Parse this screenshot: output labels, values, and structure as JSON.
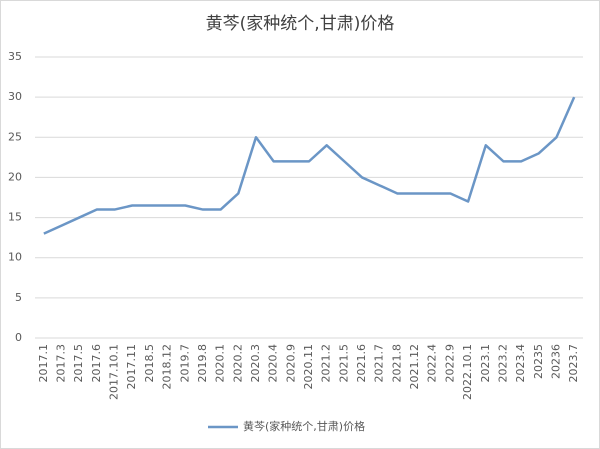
{
  "chart_data": {
    "type": "line",
    "title": "黄芩(家种统个,甘肃)价格",
    "categories": [
      "2017.1",
      "2017.3",
      "2017.5",
      "2017.6",
      "2017.10.1",
      "2017.11",
      "2018.5",
      "2018.12",
      "2019.7",
      "2019.8",
      "2020.1",
      "2020.2",
      "2020.3",
      "2020.4",
      "2020.9",
      "2020.11",
      "2021.2",
      "2021.5",
      "2021.6",
      "2021.7",
      "2021.8",
      "2021.12",
      "2022.4",
      "2022.9",
      "2022.10.1",
      "2023.1",
      "2023.2",
      "2023.4",
      "20235",
      "20236",
      "2023.7"
    ],
    "series": [
      {
        "name": "黄芩(家种统个,甘肃)价格",
        "color": "#6b96c6",
        "values": [
          13,
          14,
          15,
          16,
          16,
          16.5,
          16.5,
          16.5,
          16.5,
          16,
          16,
          18,
          25,
          22,
          22,
          22,
          24,
          22,
          20,
          19,
          18,
          18,
          18,
          18,
          17,
          24,
          22,
          22,
          23,
          25,
          30
        ]
      }
    ],
    "ylim": [
      0,
      35
    ],
    "yticks": [
      0,
      5,
      10,
      15,
      20,
      25,
      30,
      35
    ],
    "grid": true,
    "legend": "bottom"
  }
}
